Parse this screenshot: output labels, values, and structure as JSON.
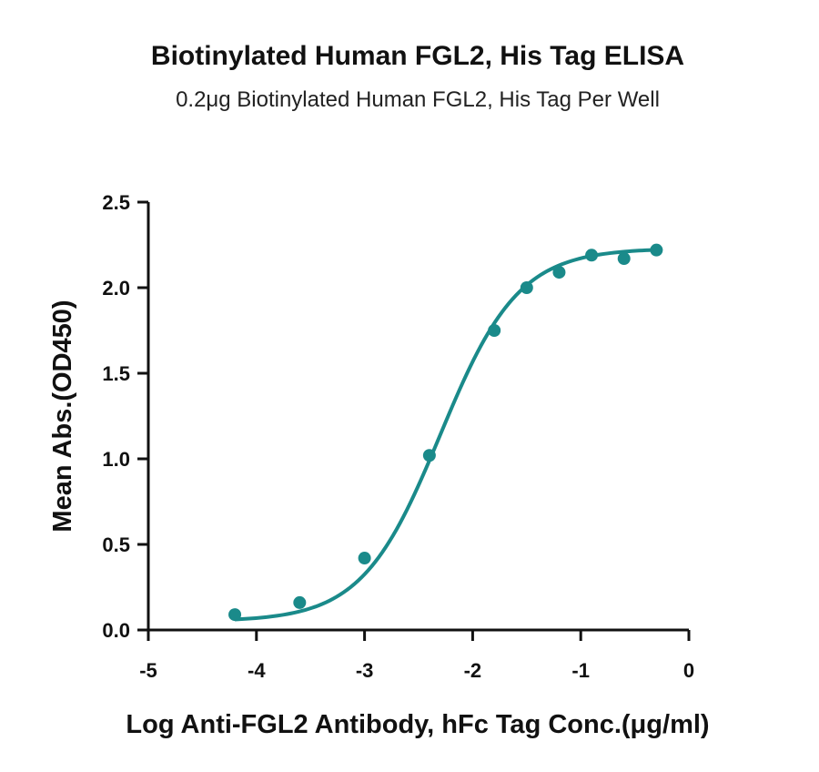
{
  "chart_data": {
    "type": "scatter",
    "title": "Biotinylated Human FGL2, His Tag ELISA",
    "subtitle": "0.2μg Biotinylated Human FGL2, His Tag Per Well",
    "xlabel": "Log Anti-FGL2 Antibody, hFc Tag Conc.(μg/ml)",
    "ylabel": "Mean Abs.(OD450)",
    "xlim": [
      -5,
      0
    ],
    "ylim": [
      0,
      2.5
    ],
    "xticks": [
      "-5",
      "-4",
      "-3",
      "-2",
      "-1",
      "0"
    ],
    "yticks": [
      "0.0",
      "0.5",
      "1.0",
      "1.5",
      "2.0",
      "2.5"
    ],
    "grid": false,
    "color": "#1a8a8a",
    "series": [
      {
        "x": [
          -4.2,
          -3.6,
          -3.0,
          -2.4,
          -1.8,
          -1.5,
          -1.2,
          -0.9,
          -0.6,
          -0.3
        ],
        "y": [
          0.09,
          0.16,
          0.42,
          1.02,
          1.75,
          2.0,
          2.09,
          2.19,
          2.17,
          2.22
        ]
      }
    ],
    "fit": {
      "model": "4PL",
      "bottom": 0.05,
      "top": 2.23,
      "log_ec50": -2.3,
      "hill": 1.2
    }
  }
}
